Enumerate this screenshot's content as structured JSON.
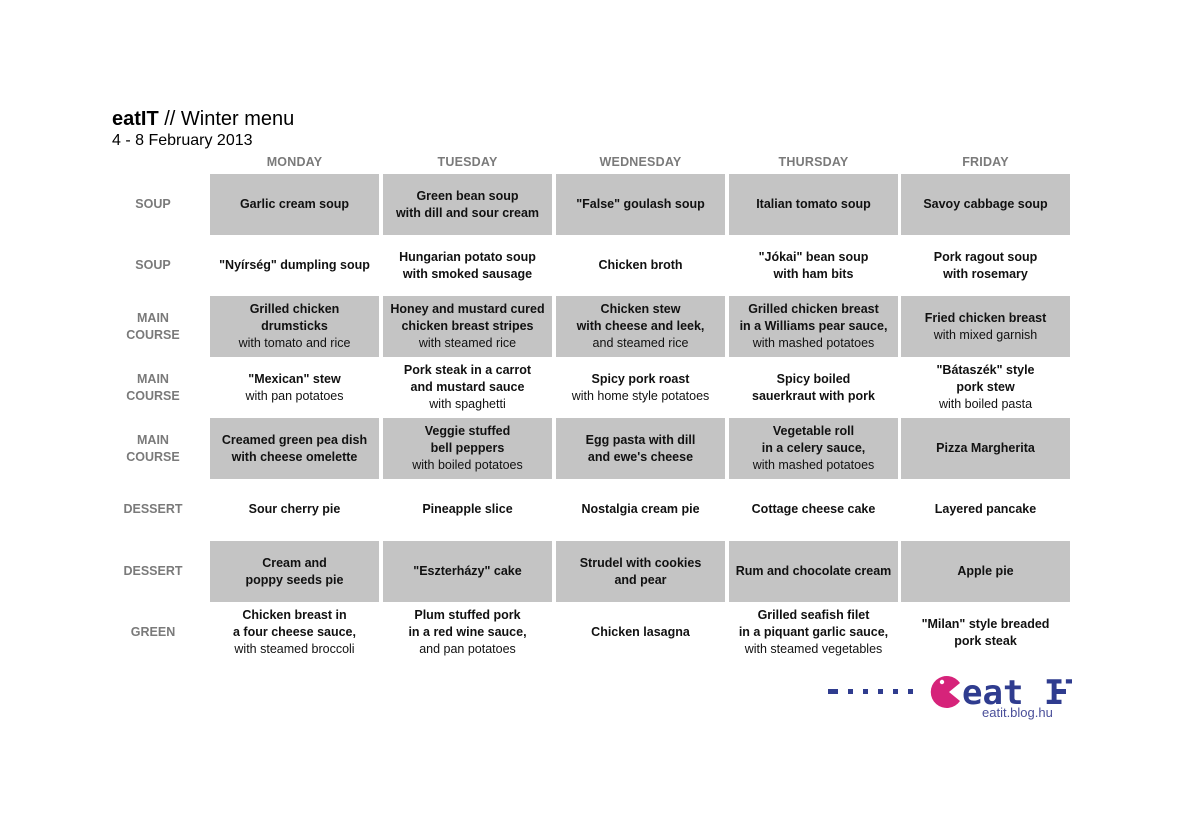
{
  "header": {
    "brand": "eatIT",
    "title_rest": " // Winter menu",
    "dates": "4 - 8 February 2013"
  },
  "days": [
    "MONDAY",
    "TUESDAY",
    "WEDNESDAY",
    "THURSDAY",
    "FRIDAY"
  ],
  "rows": [
    {
      "label": "SOUP",
      "cells": [
        {
          "main": "Garlic cream soup",
          "side": ""
        },
        {
          "main": "Green bean soup\nwith dill and sour cream",
          "side": ""
        },
        {
          "main": "\"False\" goulash soup",
          "side": ""
        },
        {
          "main": "Italian tomato soup",
          "side": ""
        },
        {
          "main": "Savoy cabbage soup",
          "side": ""
        }
      ]
    },
    {
      "label": "SOUP",
      "cells": [
        {
          "main": "\"Nyírség\" dumpling soup",
          "side": ""
        },
        {
          "main": "Hungarian potato soup\nwith smoked sausage",
          "side": ""
        },
        {
          "main": "Chicken broth",
          "side": ""
        },
        {
          "main": "\"Jókai\" bean soup\nwith ham bits",
          "side": ""
        },
        {
          "main": "Pork ragout soup\nwith rosemary",
          "side": ""
        }
      ]
    },
    {
      "label": "MAIN\nCOURSE",
      "cells": [
        {
          "main": "Grilled chicken\ndrumsticks",
          "side": "with tomato and rice"
        },
        {
          "main": "Honey and mustard cured\nchicken breast stripes",
          "side": "with steamed rice"
        },
        {
          "main": "Chicken stew\nwith cheese and leek,",
          "side": "and steamed rice"
        },
        {
          "main": "Grilled chicken breast\nin a Williams pear sauce,",
          "side": "with mashed potatoes"
        },
        {
          "main": "Fried chicken breast",
          "side": "with mixed garnish"
        }
      ]
    },
    {
      "label": "MAIN\nCOURSE",
      "cells": [
        {
          "main": "\"Mexican\" stew",
          "side": "with pan potatoes"
        },
        {
          "main": "Pork steak in a carrot\nand mustard sauce",
          "side": "with spaghetti"
        },
        {
          "main": "Spicy pork roast",
          "side": "with home style potatoes"
        },
        {
          "main": "Spicy boiled\nsauerkraut with pork",
          "side": ""
        },
        {
          "main": "\"Bátaszék\" style\npork stew",
          "side": "with boiled pasta"
        }
      ]
    },
    {
      "label": "MAIN\nCOURSE",
      "cells": [
        {
          "main": "Creamed green pea dish\nwith cheese omelette",
          "side": ""
        },
        {
          "main": "Veggie stuffed\nbell peppers",
          "side": "with boiled potatoes"
        },
        {
          "main": "Egg pasta with dill\nand ewe's cheese",
          "side": ""
        },
        {
          "main": "Vegetable roll\nin a celery sauce,",
          "side": "with mashed potatoes"
        },
        {
          "main": "Pizza Margherita",
          "side": ""
        }
      ]
    },
    {
      "label": "DESSERT",
      "cells": [
        {
          "main": "Sour cherry pie",
          "side": ""
        },
        {
          "main": "Pineapple slice",
          "side": ""
        },
        {
          "main": "Nostalgia cream pie",
          "side": ""
        },
        {
          "main": "Cottage cheese cake",
          "side": ""
        },
        {
          "main": "Layered pancake",
          "side": ""
        }
      ]
    },
    {
      "label": "DESSERT",
      "cells": [
        {
          "main": "Cream and\npoppy seeds pie",
          "side": ""
        },
        {
          "main": "\"Eszterházy\" cake",
          "side": ""
        },
        {
          "main": "Strudel with cookies\nand pear",
          "side": ""
        },
        {
          "main": "Rum and chocolate cream",
          "side": ""
        },
        {
          "main": "Apple pie",
          "side": ""
        }
      ]
    },
    {
      "label": "GREEN",
      "cells": [
        {
          "main": "Chicken breast in\na four cheese sauce,",
          "side": "with steamed broccoli"
        },
        {
          "main": "Plum stuffed pork\nin a red wine sauce,",
          "side": "and pan potatoes"
        },
        {
          "main": "Chicken lasagna",
          "side": ""
        },
        {
          "main": "Grilled seafish filet\nin a piquant garlic sauce,",
          "side": "with steamed vegetables"
        },
        {
          "main": "\"Milan\" style breaded\npork steak",
          "side": ""
        }
      ]
    }
  ],
  "logo": {
    "text": "eat IT",
    "url": "eatit.blog.hu",
    "brand_color": "#2f3c8f",
    "accent_color": "#d6237a"
  },
  "colors": {
    "shaded_cell": "#c4c4c4",
    "label_gray": "#7a7a7a"
  }
}
